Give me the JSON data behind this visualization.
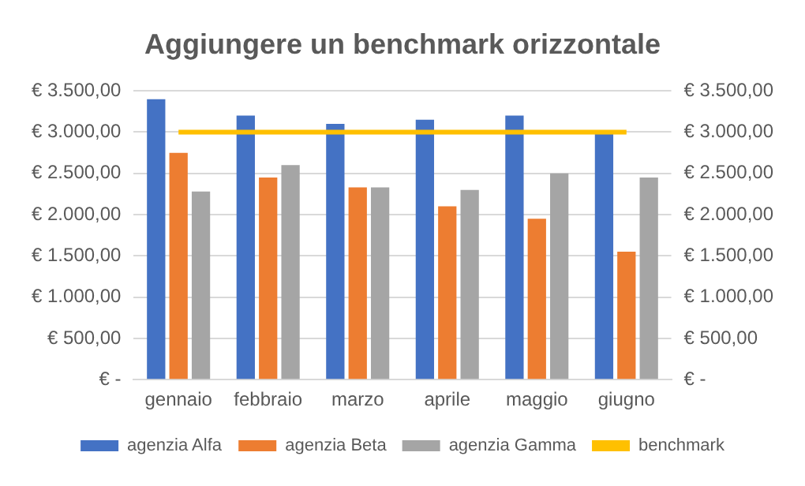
{
  "chart_data": {
    "type": "bar",
    "title": "Aggiungere un benchmark orizzontale",
    "categories": [
      "gennaio",
      "febbraio",
      "marzo",
      "aprile",
      "maggio",
      "giugno"
    ],
    "series": [
      {
        "name": "agenzia Alfa",
        "color": "#4472c4",
        "values": [
          3400,
          3200,
          3100,
          3150,
          3200,
          3000
        ]
      },
      {
        "name": "agenzia Beta",
        "color": "#ed7d31",
        "values": [
          2750,
          2450,
          2330,
          2100,
          1950,
          1550
        ]
      },
      {
        "name": "agenzia Gamma",
        "color": "#a5a5a5",
        "values": [
          2280,
          2600,
          2330,
          2300,
          2500,
          2450
        ]
      },
      {
        "name": "benchmark",
        "type": "line",
        "color": "#ffc000",
        "values": [
          3000,
          3000,
          3000,
          3000,
          3000,
          3000
        ]
      }
    ],
    "ylim": [
      0,
      3500
    ],
    "yticks": [
      {
        "value": 0,
        "label": "€ -"
      },
      {
        "value": 500,
        "label": "€ 500,00"
      },
      {
        "value": 1000,
        "label": "€ 1.000,00"
      },
      {
        "value": 1500,
        "label": "€ 1.500,00"
      },
      {
        "value": 2000,
        "label": "€ 2.000,00"
      },
      {
        "value": 2500,
        "label": "€ 2.500,00"
      },
      {
        "value": 3000,
        "label": "€ 3.000,00"
      },
      {
        "value": 3500,
        "label": "€ 3.500,00"
      }
    ],
    "y2lim": [
      0,
      3500
    ],
    "y2ticks": [
      {
        "value": 0,
        "label": "€ -"
      },
      {
        "value": 500,
        "label": "€ 500,00"
      },
      {
        "value": 1000,
        "label": "€ 1.000,00"
      },
      {
        "value": 1500,
        "label": "€ 1.500,00"
      },
      {
        "value": 2000,
        "label": "€ 2.000,00"
      },
      {
        "value": 2500,
        "label": "€ 2.500,00"
      },
      {
        "value": 3000,
        "label": "€ 3.000,00"
      },
      {
        "value": 3500,
        "label": "€ 3.500,00"
      }
    ],
    "grid": "y",
    "legend": "bottom",
    "marker": "none"
  }
}
